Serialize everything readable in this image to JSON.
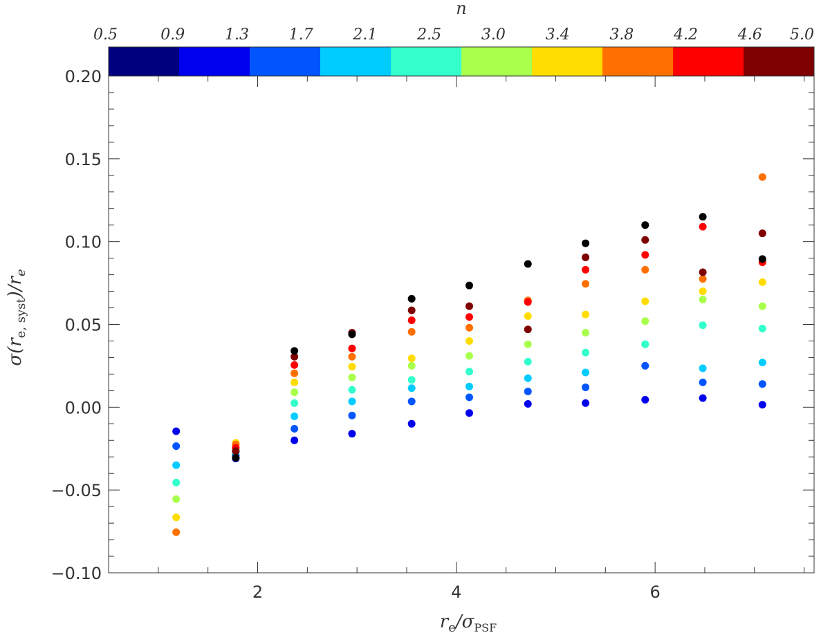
{
  "chart_data": {
    "type": "scatter",
    "xlabel": "r_e/σ_PSF",
    "ylabel": "σ(r_e, syst)/r_e",
    "xlim": [
      0.5,
      7.6
    ],
    "ylim": [
      -0.1,
      0.2
    ],
    "x_ticks": [
      2,
      4,
      6
    ],
    "x_tick_labels": [
      "2",
      "4",
      "6"
    ],
    "y_ticks": [
      -0.1,
      -0.05,
      0.0,
      0.05,
      0.1,
      0.15,
      0.2
    ],
    "y_tick_labels": [
      "−0.10",
      "−0.05",
      "0.00",
      "0.05",
      "0.10",
      "0.15",
      "0.20"
    ],
    "grid": false,
    "colorbar": {
      "title": "n",
      "tick_labels": [
        "0.5",
        "0.9",
        "1.3",
        "1.7",
        "2.1",
        "2.5",
        "3.0",
        "3.4",
        "3.8",
        "4.2",
        "4.6",
        "5.0"
      ],
      "colors": [
        "#00007f",
        "#0000ee",
        "#0055ff",
        "#00ccff",
        "#33ffcc",
        "#a8ff4c",
        "#ffdd00",
        "#ff7000",
        "#ff0000",
        "#7f0000"
      ]
    },
    "series": [
      {
        "color": "#0000ee",
        "points": [
          [
            1.18,
            -0.0145
          ],
          [
            1.78,
            -0.031
          ],
          [
            2.37,
            -0.02
          ],
          [
            2.95,
            -0.016
          ],
          [
            3.55,
            -0.01
          ],
          [
            4.13,
            -0.0035
          ],
          [
            4.72,
            0.002
          ],
          [
            5.3,
            0.0025
          ],
          [
            5.9,
            0.0045
          ],
          [
            6.48,
            0.0055
          ],
          [
            7.08,
            0.0015
          ]
        ]
      },
      {
        "color": "#0055ff",
        "points": [
          [
            1.18,
            -0.0235
          ],
          [
            1.78,
            -0.029
          ],
          [
            2.37,
            -0.013
          ],
          [
            2.95,
            -0.005
          ],
          [
            3.55,
            0.0035
          ],
          [
            4.13,
            0.006
          ],
          [
            4.72,
            0.0095
          ],
          [
            5.3,
            0.012
          ],
          [
            5.9,
            0.025
          ],
          [
            6.48,
            0.015
          ],
          [
            7.08,
            0.014
          ]
        ]
      },
      {
        "color": "#00ccff",
        "points": [
          [
            1.18,
            -0.035
          ],
          [
            1.78,
            -0.027
          ],
          [
            2.37,
            -0.0055
          ],
          [
            2.95,
            0.0035
          ],
          [
            3.55,
            0.0115
          ],
          [
            4.13,
            0.0125
          ],
          [
            4.72,
            0.0175
          ],
          [
            5.3,
            0.021
          ],
          [
            5.9,
            0.038
          ],
          [
            6.48,
            0.0235
          ],
          [
            7.08,
            0.027
          ]
        ]
      },
      {
        "color": "#33ffcc",
        "points": [
          [
            1.18,
            -0.0455
          ],
          [
            1.78,
            -0.026
          ],
          [
            2.37,
            0.0025
          ],
          [
            2.95,
            0.0105
          ],
          [
            3.55,
            0.0165
          ],
          [
            4.13,
            0.0215
          ],
          [
            4.72,
            0.0275
          ],
          [
            5.3,
            0.033
          ],
          [
            5.9,
            0.038
          ],
          [
            6.48,
            0.0495
          ],
          [
            7.08,
            0.0475
          ]
        ]
      },
      {
        "color": "#a8ff4c",
        "points": [
          [
            1.18,
            -0.0555
          ],
          [
            1.78,
            -0.025
          ],
          [
            2.37,
            0.009
          ],
          [
            2.95,
            0.018
          ],
          [
            3.55,
            0.025
          ],
          [
            4.13,
            0.031
          ],
          [
            4.72,
            0.038
          ],
          [
            5.3,
            0.045
          ],
          [
            5.9,
            0.052
          ],
          [
            6.48,
            0.065
          ],
          [
            7.08,
            0.061
          ]
        ]
      },
      {
        "color": "#ffdd00",
        "points": [
          [
            1.18,
            -0.0665
          ],
          [
            1.78,
            -0.0215
          ],
          [
            2.37,
            0.015
          ],
          [
            2.95,
            0.0245
          ],
          [
            3.55,
            0.0295
          ],
          [
            4.13,
            0.04
          ],
          [
            4.72,
            0.055
          ],
          [
            5.3,
            0.056
          ],
          [
            5.9,
            0.064
          ],
          [
            6.48,
            0.07
          ],
          [
            7.08,
            0.0755
          ]
        ]
      },
      {
        "color": "#ff7000",
        "points": [
          [
            1.18,
            -0.0755
          ],
          [
            1.78,
            -0.0225
          ],
          [
            2.37,
            0.0205
          ],
          [
            2.95,
            0.0305
          ],
          [
            3.55,
            0.0455
          ],
          [
            4.13,
            0.048
          ],
          [
            4.72,
            0.0645
          ],
          [
            5.3,
            0.0745
          ],
          [
            5.9,
            0.083
          ],
          [
            6.48,
            0.0775
          ],
          [
            7.08,
            0.139
          ]
        ]
      },
      {
        "color": "#ff0000",
        "points": [
          [
            1.78,
            -0.0245
          ],
          [
            2.37,
            0.0255
          ],
          [
            2.95,
            0.0355
          ],
          [
            3.55,
            0.0525
          ],
          [
            4.13,
            0.0545
          ],
          [
            4.72,
            0.0635
          ],
          [
            5.3,
            0.083
          ],
          [
            5.9,
            0.092
          ],
          [
            6.48,
            0.109
          ],
          [
            7.08,
            0.0875
          ]
        ]
      },
      {
        "color": "#7f0000",
        "points": [
          [
            1.78,
            -0.0265
          ],
          [
            2.37,
            0.0305
          ],
          [
            2.95,
            0.045
          ],
          [
            3.55,
            0.0585
          ],
          [
            4.13,
            0.061
          ],
          [
            4.72,
            0.047
          ],
          [
            5.3,
            0.0905
          ],
          [
            5.9,
            0.101
          ],
          [
            6.48,
            0.0815
          ],
          [
            7.08,
            0.105
          ]
        ]
      },
      {
        "color": "#000000",
        "points": [
          [
            1.78,
            -0.0305
          ],
          [
            2.37,
            0.034
          ],
          [
            2.95,
            0.044
          ],
          [
            3.55,
            0.0655
          ],
          [
            4.13,
            0.0735
          ],
          [
            4.72,
            0.0865
          ],
          [
            5.3,
            0.099
          ],
          [
            5.9,
            0.11
          ],
          [
            6.48,
            0.115
          ],
          [
            7.08,
            0.0895
          ]
        ]
      }
    ]
  }
}
